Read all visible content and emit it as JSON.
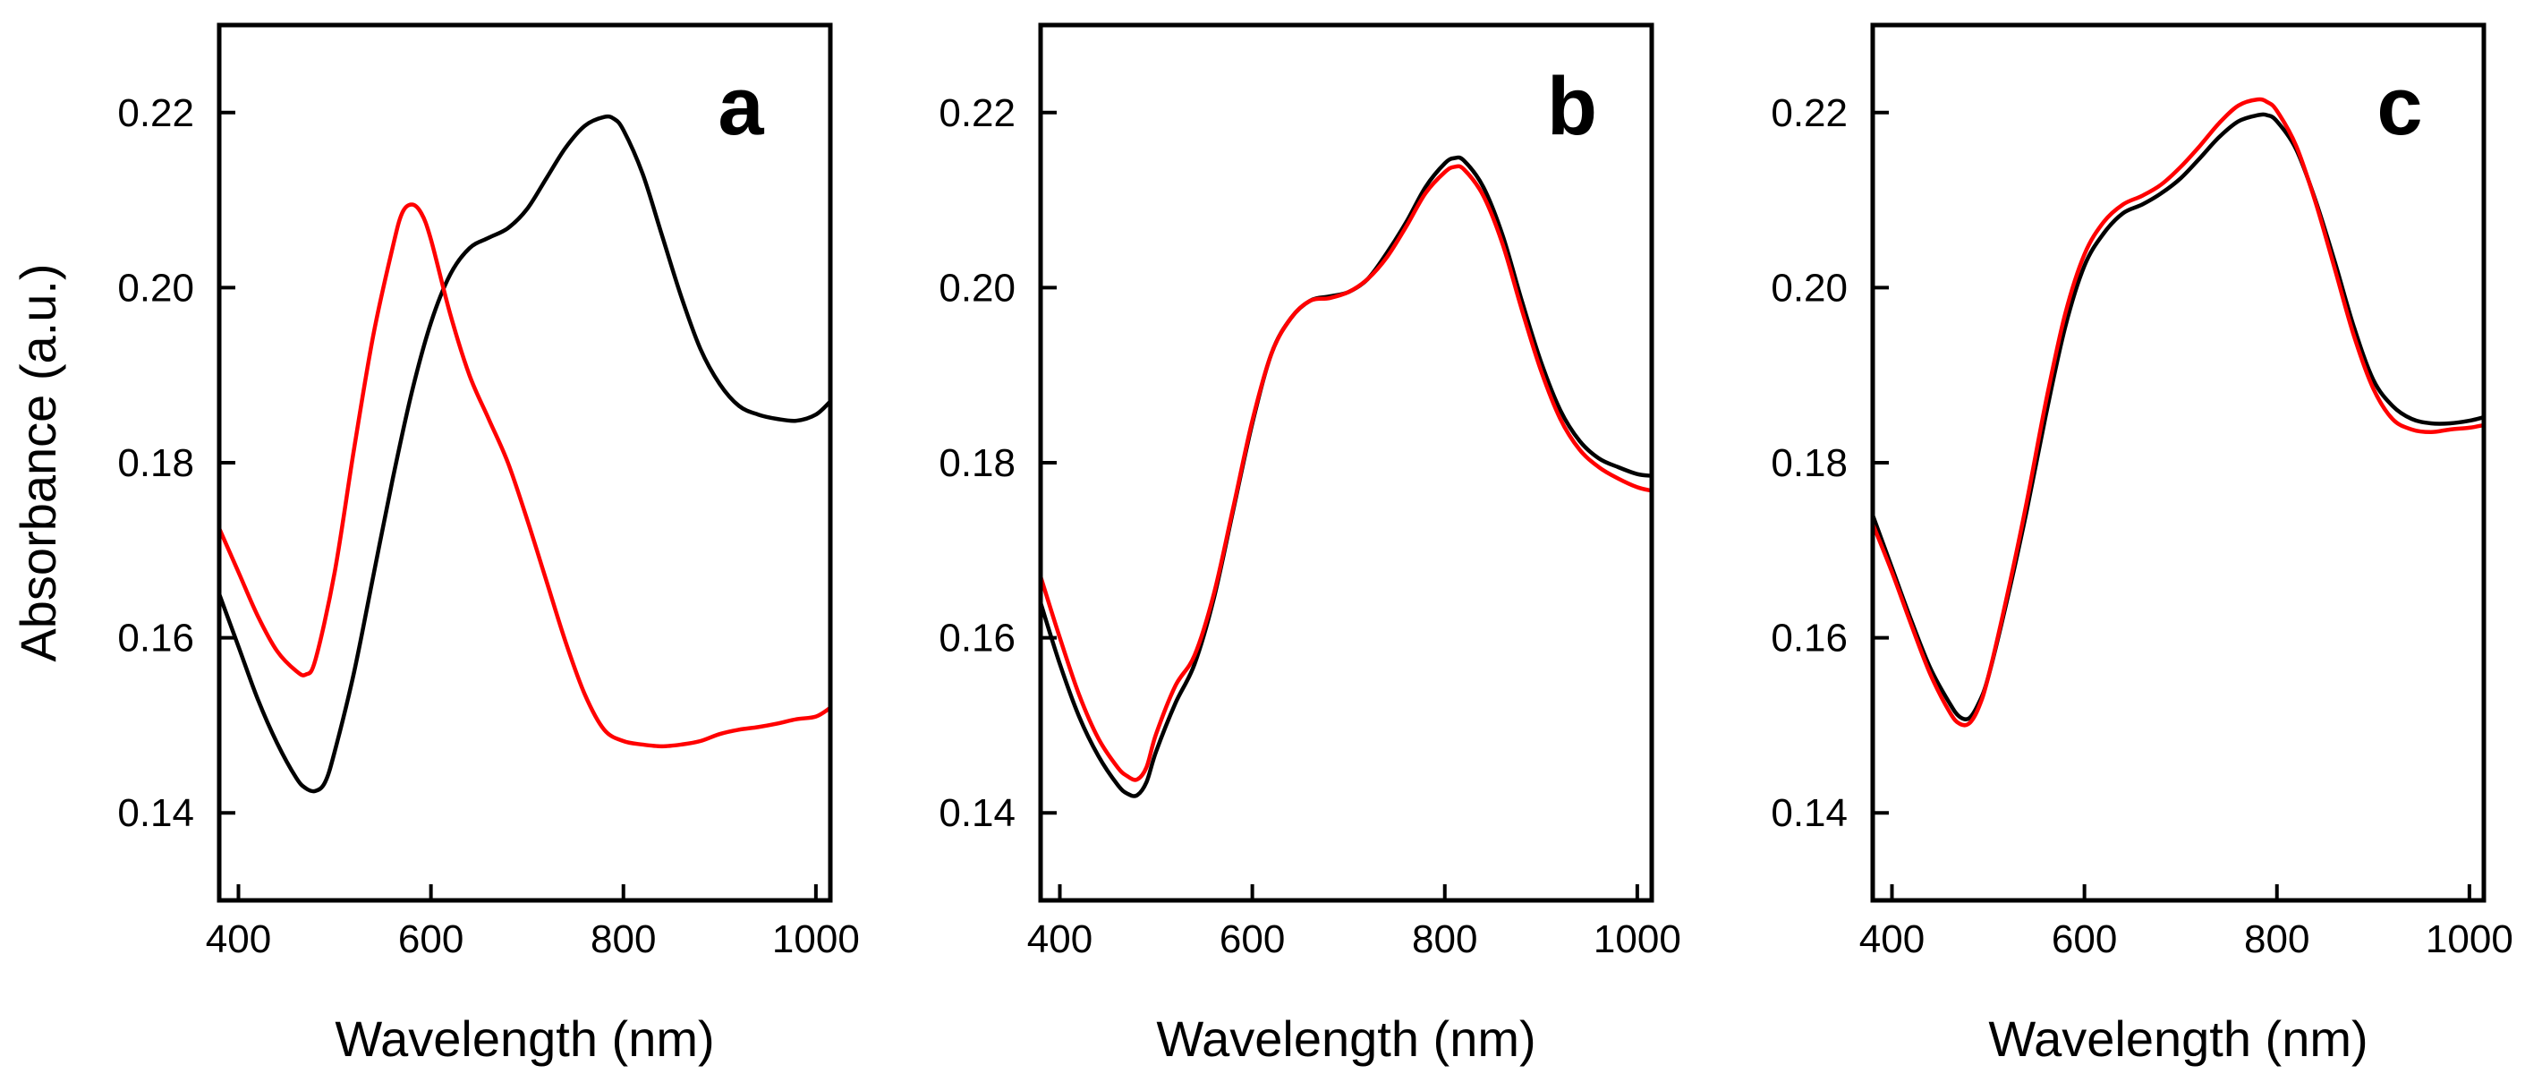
{
  "chart_data": [
    {
      "type": "line",
      "panel_label": "a",
      "xlabel": "Wavelength (nm)",
      "ylabel": "Absorbance (a.u.)",
      "xlim": [
        380,
        1015
      ],
      "ylim": [
        0.13,
        0.23
      ],
      "xticks": [
        400,
        600,
        800,
        1000
      ],
      "xtick_labels": [
        "400",
        "600",
        "800",
        "1000"
      ],
      "yticks": [
        0.14,
        0.16,
        0.18,
        0.2,
        0.22
      ],
      "ytick_labels": [
        "0.14",
        "0.16",
        "0.18",
        "0.20",
        "0.22"
      ],
      "series": [
        {
          "name": "black",
          "color": "#000000",
          "x": [
            380,
            400,
            420,
            440,
            460,
            470,
            480,
            490,
            500,
            520,
            540,
            560,
            580,
            600,
            620,
            640,
            660,
            680,
            700,
            720,
            740,
            760,
            780,
            790,
            800,
            820,
            840,
            860,
            880,
            900,
            920,
            940,
            960,
            980,
            1000,
            1015
          ],
          "y": [
            0.165,
            0.159,
            0.153,
            0.148,
            0.144,
            0.1428,
            0.1425,
            0.1435,
            0.147,
            0.156,
            0.167,
            0.178,
            0.188,
            0.196,
            0.2015,
            0.2045,
            0.2057,
            0.2068,
            0.209,
            0.2125,
            0.216,
            0.2185,
            0.2195,
            0.2193,
            0.218,
            0.213,
            0.206,
            0.199,
            0.193,
            0.189,
            0.1865,
            0.1855,
            0.185,
            0.1848,
            0.1855,
            0.187
          ]
        },
        {
          "name": "red",
          "color": "#ff0000",
          "x": [
            380,
            400,
            420,
            440,
            460,
            470,
            480,
            500,
            520,
            540,
            560,
            570,
            580,
            590,
            600,
            620,
            640,
            660,
            680,
            700,
            720,
            740,
            760,
            780,
            800,
            820,
            840,
            860,
            880,
            900,
            920,
            940,
            960,
            980,
            1000,
            1015
          ],
          "y": [
            0.1725,
            0.1675,
            0.1625,
            0.1585,
            0.1562,
            0.1558,
            0.1575,
            0.1675,
            0.1815,
            0.1945,
            0.2045,
            0.2085,
            0.2095,
            0.2085,
            0.2055,
            0.197,
            0.19,
            0.185,
            0.18,
            0.1735,
            0.1665,
            0.1595,
            0.1535,
            0.1495,
            0.1482,
            0.1478,
            0.1476,
            0.1478,
            0.1482,
            0.149,
            0.1495,
            0.1498,
            0.1502,
            0.1507,
            0.151,
            0.152
          ]
        }
      ]
    },
    {
      "type": "line",
      "panel_label": "b",
      "xlabel": "Wavelength (nm)",
      "ylabel": "",
      "xlim": [
        380,
        1015
      ],
      "ylim": [
        0.13,
        0.23
      ],
      "xticks": [
        400,
        600,
        800,
        1000
      ],
      "xtick_labels": [
        "400",
        "600",
        "800",
        "1000"
      ],
      "yticks": [
        0.14,
        0.16,
        0.18,
        0.2,
        0.22
      ],
      "ytick_labels": [
        "0.14",
        "0.16",
        "0.18",
        "0.20",
        "0.22"
      ],
      "series": [
        {
          "name": "black",
          "color": "#000000",
          "x": [
            380,
            400,
            420,
            440,
            460,
            470,
            480,
            490,
            500,
            520,
            540,
            560,
            580,
            600,
            620,
            640,
            660,
            680,
            700,
            720,
            740,
            760,
            780,
            800,
            810,
            820,
            840,
            860,
            880,
            900,
            920,
            940,
            960,
            980,
            1000,
            1015
          ],
          "y": [
            0.164,
            0.157,
            0.151,
            0.1465,
            0.1432,
            0.1422,
            0.142,
            0.1435,
            0.147,
            0.1525,
            0.157,
            0.1645,
            0.1745,
            0.1845,
            0.1925,
            0.1965,
            0.1985,
            0.199,
            0.1995,
            0.201,
            0.204,
            0.2075,
            0.2115,
            0.2142,
            0.2148,
            0.2145,
            0.2115,
            0.206,
            0.1985,
            0.1915,
            0.186,
            0.1825,
            0.1805,
            0.1795,
            0.1787,
            0.1785
          ]
        },
        {
          "name": "red",
          "color": "#ff0000",
          "x": [
            380,
            400,
            420,
            440,
            460,
            470,
            480,
            490,
            500,
            520,
            540,
            560,
            580,
            600,
            620,
            640,
            660,
            680,
            700,
            720,
            740,
            760,
            780,
            800,
            810,
            820,
            840,
            860,
            880,
            900,
            920,
            940,
            960,
            980,
            1000,
            1015
          ],
          "y": [
            0.167,
            0.16,
            0.1535,
            0.1485,
            0.1452,
            0.1442,
            0.1438,
            0.1452,
            0.149,
            0.1545,
            0.158,
            0.165,
            0.1748,
            0.1848,
            0.1925,
            0.1965,
            0.1985,
            0.1988,
            0.1995,
            0.201,
            0.2035,
            0.207,
            0.2108,
            0.2132,
            0.2138,
            0.2135,
            0.2105,
            0.205,
            0.1975,
            0.1905,
            0.185,
            0.1815,
            0.1795,
            0.1782,
            0.1772,
            0.1768
          ]
        }
      ]
    },
    {
      "type": "line",
      "panel_label": "c",
      "xlabel": "Wavelength (nm)",
      "ylabel": "",
      "xlim": [
        380,
        1015
      ],
      "ylim": [
        0.13,
        0.23
      ],
      "xticks": [
        400,
        600,
        800,
        1000
      ],
      "xtick_labels": [
        "400",
        "600",
        "800",
        "1000"
      ],
      "yticks": [
        0.14,
        0.16,
        0.18,
        0.2,
        0.22
      ],
      "ytick_labels": [
        "0.14",
        "0.16",
        "0.18",
        "0.20",
        "0.22"
      ],
      "series": [
        {
          "name": "black",
          "color": "#000000",
          "x": [
            380,
            400,
            420,
            440,
            460,
            470,
            480,
            490,
            500,
            520,
            540,
            560,
            580,
            600,
            620,
            640,
            660,
            680,
            700,
            720,
            740,
            760,
            780,
            790,
            800,
            820,
            840,
            860,
            880,
            900,
            920,
            940,
            960,
            980,
            1000,
            1015
          ],
          "y": [
            0.174,
            0.168,
            0.162,
            0.1565,
            0.1525,
            0.151,
            0.1508,
            0.1525,
            0.1555,
            0.1645,
            0.1745,
            0.1855,
            0.1955,
            0.2025,
            0.2062,
            0.2085,
            0.2095,
            0.2108,
            0.2125,
            0.2148,
            0.2172,
            0.219,
            0.2197,
            0.2197,
            0.219,
            0.2158,
            0.21,
            0.203,
            0.1955,
            0.1895,
            0.1865,
            0.185,
            0.1845,
            0.1845,
            0.1848,
            0.1852
          ]
        },
        {
          "name": "red",
          "color": "#ff0000",
          "x": [
            380,
            400,
            420,
            440,
            460,
            470,
            480,
            490,
            500,
            520,
            540,
            560,
            580,
            600,
            620,
            640,
            660,
            680,
            700,
            720,
            740,
            760,
            780,
            790,
            800,
            820,
            840,
            860,
            880,
            900,
            920,
            940,
            960,
            980,
            1000,
            1015
          ],
          "y": [
            0.173,
            0.1675,
            0.1615,
            0.1558,
            0.1515,
            0.1502,
            0.1502,
            0.152,
            0.1555,
            0.165,
            0.1755,
            0.187,
            0.197,
            0.2038,
            0.2075,
            0.2095,
            0.2105,
            0.2118,
            0.2138,
            0.2162,
            0.2188,
            0.2208,
            0.2215,
            0.2212,
            0.2202,
            0.2162,
            0.2098,
            0.2022,
            0.1945,
            0.1885,
            0.185,
            0.1838,
            0.1835,
            0.1838,
            0.184,
            0.1843
          ]
        }
      ]
    }
  ]
}
